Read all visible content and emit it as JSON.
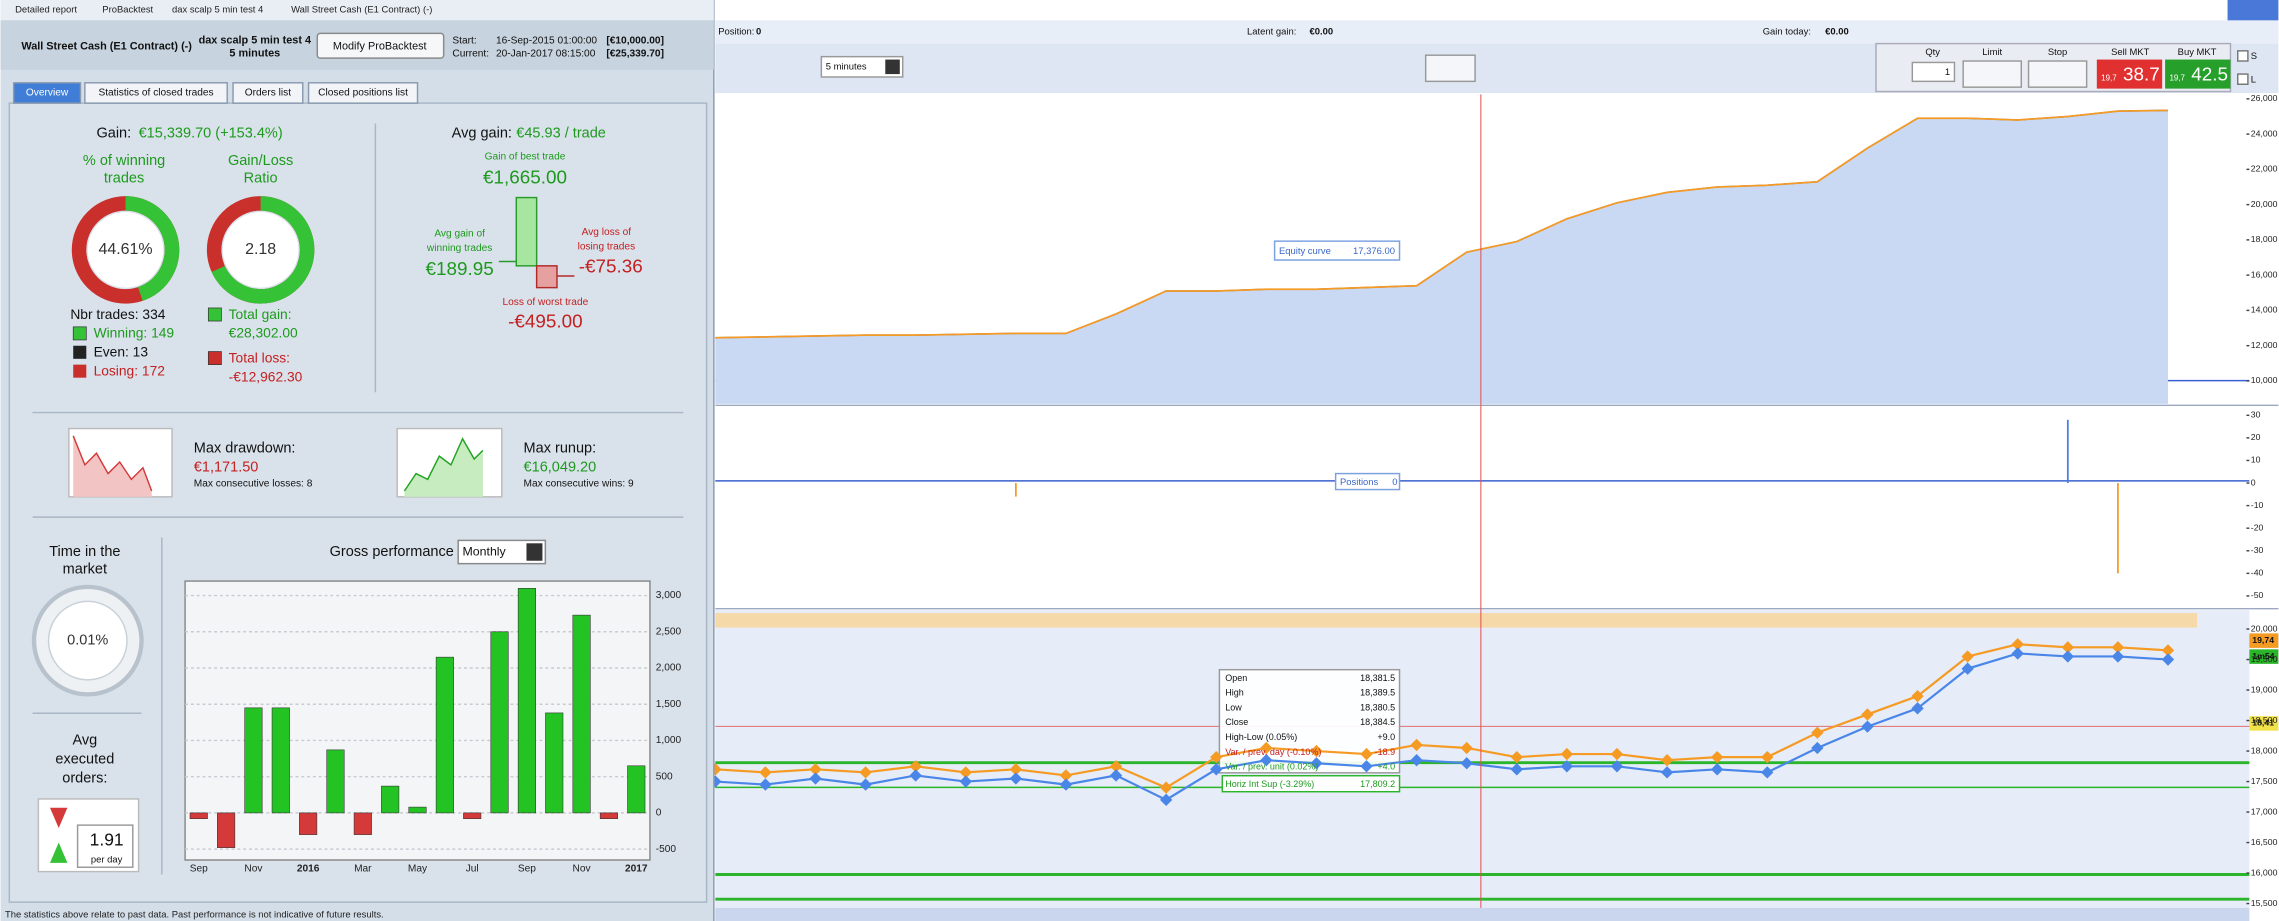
{
  "window": {
    "title_items": [
      "Detailed report",
      "ProBacktest",
      "dax scalp 5 min test 4",
      "Wall Street Cash (E1 Contract) (-)"
    ]
  },
  "header": {
    "instrument": "Wall Street Cash (E1 Contract) (-)",
    "strategy": "dax scalp 5 min test 4",
    "timeframe": "5 minutes",
    "button": "Modify ProBacktest",
    "start_label": "Start:",
    "start_date": "16-Sep-2015 01:00:00",
    "start_capital": "[€10,000.00]",
    "current_label": "Current:",
    "current_date": "20-Jan-2017 08:15:00",
    "current_capital": "[€25,339.70]"
  },
  "tabs": [
    "Overview",
    "Statistics of closed trades",
    "Orders list",
    "Closed positions list"
  ],
  "summary": {
    "gain_label": "Gain:",
    "gain": "€15,339.70 (+153.4%)",
    "winning_title": [
      "% of winning",
      "trades"
    ],
    "winning_pct": "44.61%",
    "ratio_title": [
      "Gain/Loss",
      "Ratio"
    ],
    "ratio": "2.18",
    "nbr_trades": "Nbr trades: 334",
    "winning": "Winning: 149",
    "even": "Even: 13",
    "losing": "Losing: 172",
    "total_gain_label": "Total gain:",
    "total_gain": "€28,302.00",
    "total_loss_label": "Total loss:",
    "total_loss": "-€12,962.30",
    "avg_gain_label": "Avg gain:",
    "avg_gain": "€45.93 / trade",
    "best_label": "Gain of best trade",
    "best": "€1,665.00",
    "avg_win_label": [
      "Avg gain of",
      "winning trades"
    ],
    "avg_win": "€189.95",
    "avg_loss_label": [
      "Avg loss of",
      "losing trades"
    ],
    "avg_loss": "-€75.36",
    "worst_label": "Loss of worst trade",
    "worst": "-€495.00",
    "drawdown_label": "Max drawdown:",
    "drawdown": "€1,171.50",
    "consec_losses": "Max consecutive losses: 8",
    "runup_label": "Max runup:",
    "runup": "€16,049.20",
    "consec_wins": "Max consecutive wins: 9",
    "time_title": [
      "Time in the",
      "market"
    ],
    "time": "0.01%",
    "orders_title": [
      "Avg",
      "executed",
      "orders:"
    ],
    "orders": "1.91",
    "orders_unit": "per day",
    "gross_label": "Gross performance",
    "gross_period": "Monthly"
  },
  "footer": "The statistics above relate to past data. Past performance is not indicative of future results.",
  "toolbar": {
    "position_label": "Position:",
    "position": "0",
    "latent_label": "Latent gain:",
    "latent": "€0.00",
    "today_label": "Gain today:",
    "today": "€0.00",
    "timeframe": "5 minutes",
    "qty_label": "Qty",
    "qty": "1",
    "limit": "Limit",
    "stop": "Stop",
    "sell": "Sell MKT",
    "sell_prefix": "19,7",
    "sell_price": "38.7",
    "buy": "Buy MKT",
    "buy_prefix": "19,7",
    "buy_price": "42.5",
    "s": "S",
    "l": "L"
  },
  "chart_data": [
    {
      "type": "bar",
      "categories": [
        "Sep",
        null,
        "Nov",
        null,
        "2016",
        null,
        "Mar",
        null,
        "May",
        null,
        "Jul",
        null,
        "Sep",
        null,
        "Nov",
        null,
        "2017"
      ],
      "values": [
        -80,
        -480,
        1450,
        1450,
        -300,
        870,
        -300,
        370,
        80,
        2150,
        -80,
        2500,
        3100,
        1380,
        2730,
        -80,
        650
      ],
      "colors": {
        "positive": "#22c322",
        "negative": "#d43a3a"
      },
      "ylim": [
        -650,
        3200
      ],
      "yticks": [
        -500,
        0,
        500,
        {
          "value": 1000,
          "label": "1,000"
        },
        {
          "value": 1500,
          "label": "1,500"
        },
        {
          "value": 2000,
          "label": "2,000"
        },
        {
          "value": 2500,
          "label": "2,500"
        },
        {
          "value": 3000,
          "label": "3,000"
        }
      ],
      "grid": true
    },
    {
      "type": "line",
      "annotation": "Equity curve",
      "annotation_value": "17,376.00",
      "color": "#f59a23",
      "fill": "#c9d9f4",
      "values": [
        12450,
        12500,
        12550,
        12600,
        12600,
        12650,
        12700,
        12700,
        13800,
        15100,
        15100,
        15200,
        15200,
        15300,
        15400,
        17300,
        17900,
        19200,
        20100,
        20700,
        21000,
        21100,
        21300,
        23200,
        24900,
        24900,
        24800,
        25000,
        25300,
        25339.7
      ],
      "ylim": [
        8700,
        26250
      ],
      "yticks": [
        {
          "value": 10000,
          "label": "10,000"
        },
        {
          "value": 12000,
          "label": "12,000"
        },
        {
          "value": 14000,
          "label": "14,000"
        },
        {
          "value": 16000,
          "label": "16,000"
        },
        {
          "value": 18000,
          "label": "18,000"
        },
        {
          "value": 20000,
          "label": "20,000"
        },
        {
          "value": 22000,
          "label": "22,000"
        },
        {
          "value": 24000,
          "label": "24,000"
        },
        {
          "value": 26000,
          "label": "26,000"
        }
      ]
    },
    {
      "type": "spike",
      "label": "Positions",
      "label_value": "0",
      "color": "#4a7de0",
      "values": [
        0,
        0,
        0,
        0,
        0,
        0,
        -6,
        0,
        0,
        0,
        0,
        0,
        0,
        0,
        0,
        0,
        0,
        0,
        0,
        0,
        0,
        0,
        0,
        0,
        0,
        0,
        0,
        28,
        -40,
        0
      ],
      "ylim": [
        -55,
        32.5
      ],
      "yticks": [
        -50,
        -40,
        -30,
        -20,
        -10,
        0,
        10,
        20,
        30
      ]
    },
    {
      "type": "line",
      "series": [
        {
          "name": "High",
          "color": "#f59a23",
          "values": [
            17700,
            17650,
            17700,
            17650,
            17750,
            17650,
            17700,
            17600,
            17750,
            17400,
            17900,
            18050,
            18000,
            17950,
            18100,
            18050,
            17900,
            17950,
            17950,
            17850,
            17900,
            17900,
            18300,
            18600,
            18900,
            19550,
            19750,
            19700,
            19700,
            19650
          ]
        },
        {
          "name": "Low",
          "color": "#4a86e8",
          "values": [
            17500,
            17450,
            17550,
            17450,
            17600,
            17500,
            17550,
            17450,
            17600,
            17200,
            17700,
            17850,
            17800,
            17750,
            17850,
            17800,
            17700,
            17750,
            17750,
            17650,
            17700,
            17650,
            18050,
            18400,
            18700,
            19350,
            19600,
            19550,
            19550,
            19500
          ]
        }
      ],
      "ylim": [
        15214,
        20310
      ],
      "yticks": [
        {
          "value": 15500,
          "label": "15,500"
        },
        {
          "value": 16000,
          "label": "16,000"
        },
        {
          "value": 16500,
          "label": "16,500"
        },
        {
          "value": 17000,
          "label": "17,000"
        },
        {
          "value": 17500,
          "label": "17,500"
        },
        {
          "value": 18000,
          "label": "18,000"
        },
        {
          "value": 18500,
          "label": "18,500"
        },
        {
          "value": 19000,
          "label": "19,000"
        },
        {
          "value": 19500,
          "label": "19,500"
        },
        {
          "value": 20000,
          "label": "20,000"
        }
      ],
      "price_tags": [
        "19,74",
        "1m54",
        "18,41"
      ],
      "tooltip": [
        [
          "Open",
          "18,381.5"
        ],
        [
          "High",
          "18,389.5"
        ],
        [
          "Low",
          "18,380.5"
        ],
        [
          "Close",
          "18,384.5"
        ],
        [
          "High-Low (0.05%)",
          "+9.0"
        ],
        [
          "Var. / prev. day (-0.10%)",
          "-18.9"
        ],
        [
          "Var. / prev. unit (0.02%)",
          "+4.0"
        ],
        [
          "Horiz Int Sup (-3.29%)",
          "17,809.2"
        ]
      ]
    }
  ]
}
